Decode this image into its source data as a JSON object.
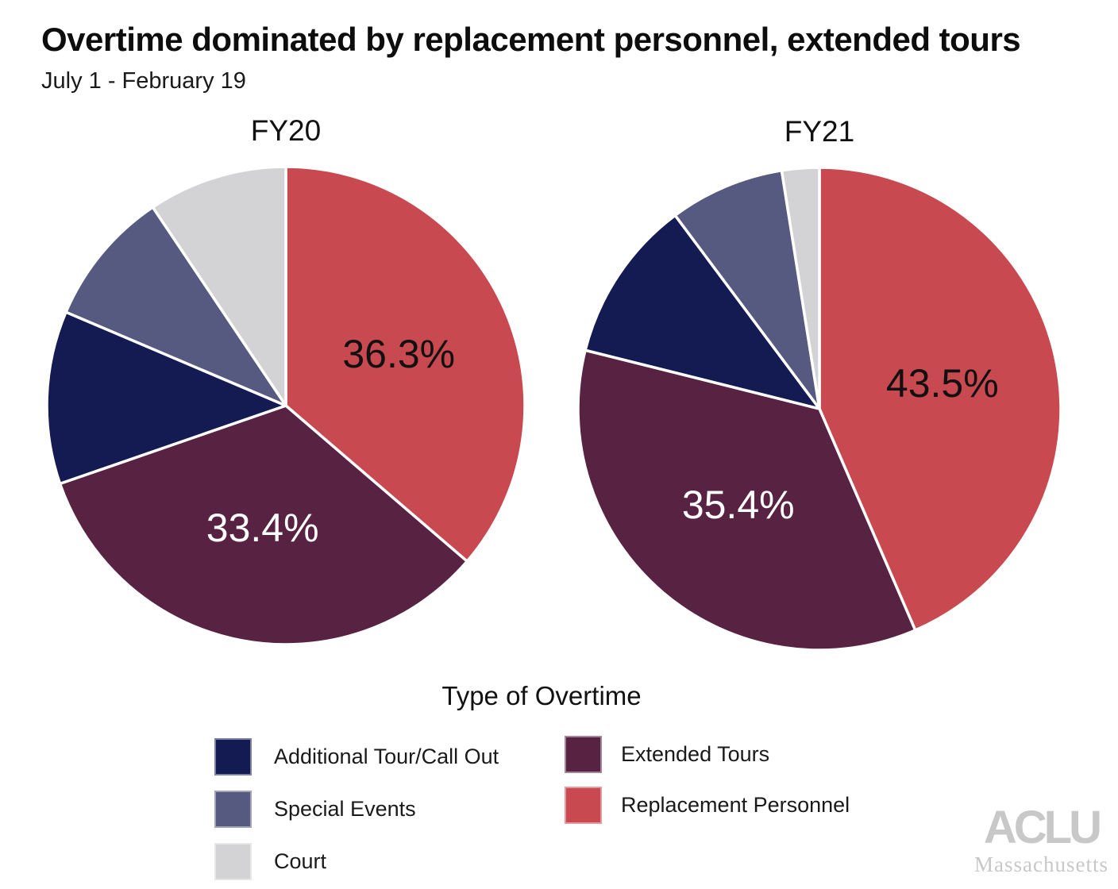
{
  "header": {
    "title": "Overtime dominated by replacement personnel, extended tours",
    "subtitle": "July 1 - February 19"
  },
  "chart_data": {
    "type": "pie",
    "title": "Overtime dominated by replacement personnel, extended tours",
    "subtitle": "July 1 - February 19",
    "start_angle": "12 o'clock",
    "direction": "clockwise",
    "slice_border_color": "#ffffff",
    "categories": [
      "Replacement Personnel",
      "Extended Tours",
      "Additional Tour/Call Out",
      "Special Events",
      "Court"
    ],
    "category_colors": {
      "Replacement Personnel": "#c8494f",
      "Extended Tours": "#582342",
      "Additional Tour/Call Out": "#141a52",
      "Special Events": "#565a80",
      "Court": "#d3d3d5"
    },
    "pies": [
      {
        "title": "FY20",
        "slices": [
          {
            "category": "Replacement Personnel",
            "value": 36.3,
            "color": "#c8494f",
            "show_label": true,
            "label": "36.3%",
            "label_color": "#111111"
          },
          {
            "category": "Extended Tours",
            "value": 33.4,
            "color": "#582342",
            "show_label": true,
            "label": "33.4%",
            "label_color": "#ffffff"
          },
          {
            "category": "Additional Tour/Call Out",
            "value": 11.7,
            "color": "#141a52",
            "show_label": false,
            "label": ""
          },
          {
            "category": "Special Events",
            "value": 9.2,
            "color": "#565a80",
            "show_label": false,
            "label": ""
          },
          {
            "category": "Court",
            "value": 9.4,
            "color": "#d3d3d5",
            "show_label": false,
            "label": ""
          }
        ]
      },
      {
        "title": "FY21",
        "slices": [
          {
            "category": "Replacement Personnel",
            "value": 43.5,
            "color": "#c8494f",
            "show_label": true,
            "label": "43.5%",
            "label_color": "#111111"
          },
          {
            "category": "Extended Tours",
            "value": 35.4,
            "color": "#582342",
            "show_label": true,
            "label": "35.4%",
            "label_color": "#ffffff"
          },
          {
            "category": "Additional Tour/Call Out",
            "value": 10.9,
            "color": "#141a52",
            "show_label": false,
            "label": ""
          },
          {
            "category": "Special Events",
            "value": 7.7,
            "color": "#565a80",
            "show_label": false,
            "label": ""
          },
          {
            "category": "Court",
            "value": 2.5,
            "color": "#d3d3d5",
            "show_label": false,
            "label": ""
          }
        ]
      }
    ]
  },
  "legend": {
    "title": "Type of Overtime",
    "columns": [
      {
        "items": [
          {
            "label": "Additional Tour/Call Out",
            "color": "#141a52"
          },
          {
            "label": "Special Events",
            "color": "#565a80"
          },
          {
            "label": "Court",
            "color": "#d3d3d5"
          }
        ]
      },
      {
        "items": [
          {
            "label": "Extended Tours",
            "color": "#582342"
          },
          {
            "label": "Replacement Personnel",
            "color": "#c8494f"
          }
        ]
      }
    ]
  },
  "branding": {
    "org": "ACLU",
    "region": "Massachusetts",
    "color": "#c8c8c8"
  }
}
